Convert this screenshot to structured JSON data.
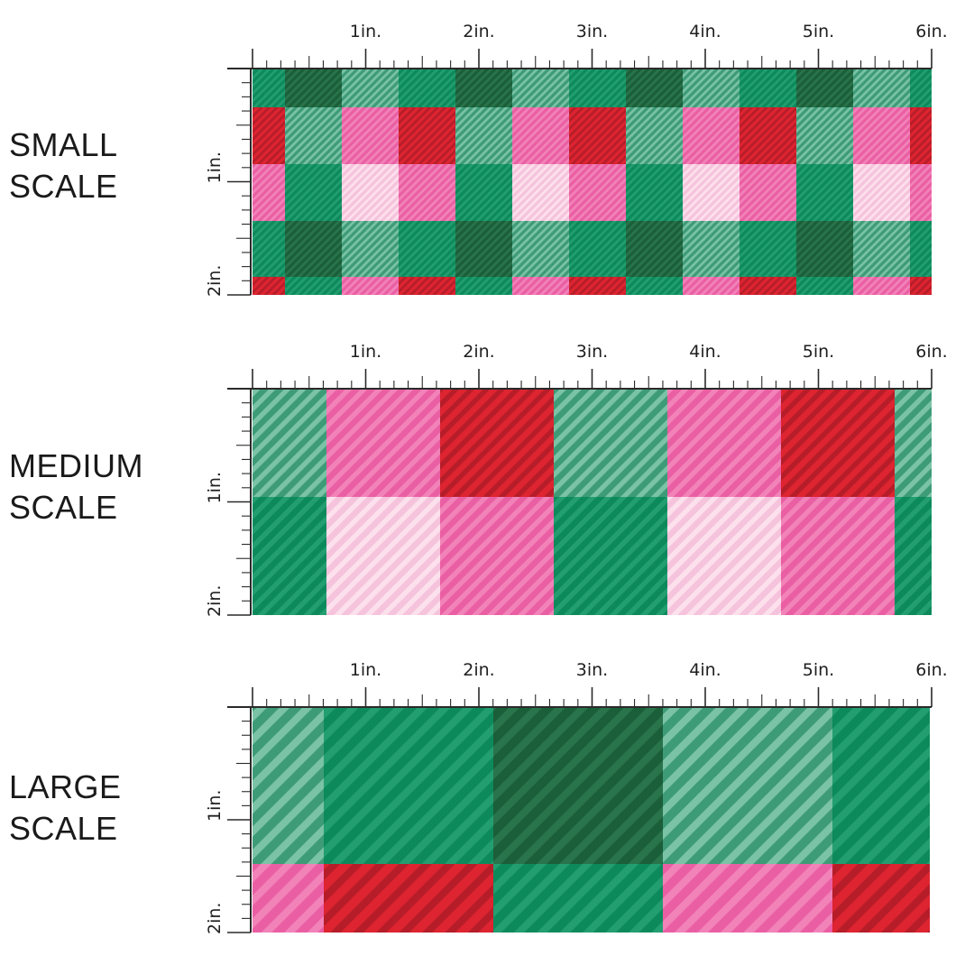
{
  "colors": {
    "forest": "#1b5e3a",
    "emerald": "#0d8a5c",
    "mint": "#3e9b78",
    "pink": "#ea5fa3",
    "pale_pink": "#f6c3dc",
    "red": "#dd2430",
    "ruler": "#2a2a2a"
  },
  "ruler": {
    "top_labels": [
      "1in.",
      "2in.",
      "3in.",
      "4in.",
      "5in.",
      "6in."
    ],
    "side_labels": [
      "1in.",
      "2in."
    ]
  },
  "panels": [
    {
      "id": "small",
      "title_line1": "SMALL",
      "title_line2": "SCALE",
      "column_pattern": [
        "A",
        "B",
        "C"
      ],
      "row_pattern": [
        "green",
        "red",
        "pink",
        "green-dark",
        "red-strip"
      ]
    },
    {
      "id": "medium",
      "title_line1": "MEDIUM",
      "title_line2": "SCALE",
      "column_pattern": [
        "A",
        "B",
        "C"
      ],
      "row_pattern": [
        "top",
        "bottom"
      ]
    },
    {
      "id": "large",
      "title_line1": "LARGE",
      "title_line2": "SCALE",
      "column_pattern": [
        "A",
        "B",
        "C"
      ],
      "row_pattern": [
        "top",
        "bottom"
      ]
    }
  ]
}
